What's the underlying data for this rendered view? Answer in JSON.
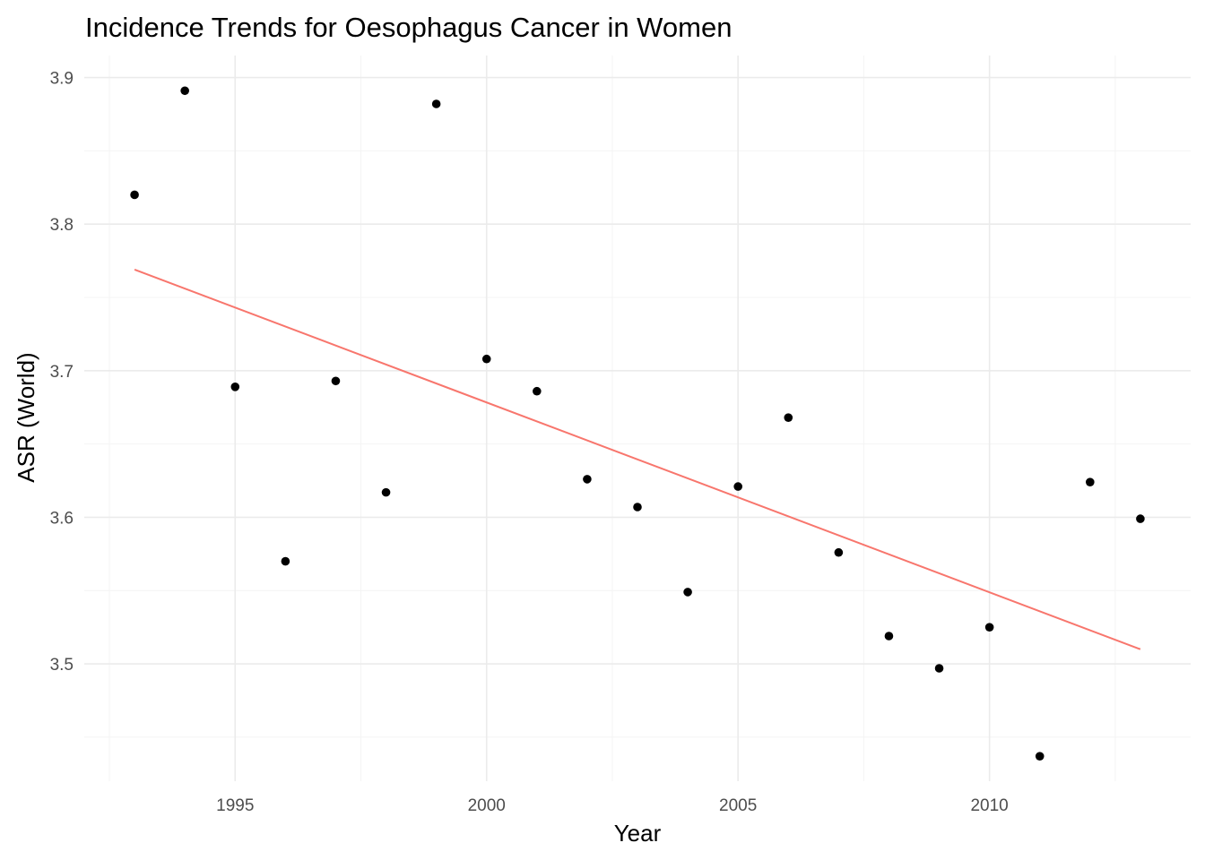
{
  "chart_data": {
    "type": "scatter",
    "title": "Incidence Trends for Oesophagus Cancer in Women",
    "xlabel": "Year",
    "ylabel": "ASR (World)",
    "xlim": [
      1992,
      2014
    ],
    "ylim": [
      3.42,
      3.915
    ],
    "x_ticks": [
      1995,
      2000,
      2005,
      2010
    ],
    "x_tick_labels": [
      "1995",
      "2000",
      "2005",
      "2010"
    ],
    "y_ticks": [
      3.5,
      3.6,
      3.7,
      3.8,
      3.9
    ],
    "y_tick_labels": [
      "3.5",
      "3.6",
      "3.7",
      "3.8",
      "3.9"
    ],
    "grid": true,
    "legend": "none",
    "points": [
      {
        "x": 1993,
        "y": 3.82
      },
      {
        "x": 1994,
        "y": 3.891
      },
      {
        "x": 1995,
        "y": 3.689
      },
      {
        "x": 1996,
        "y": 3.57
      },
      {
        "x": 1997,
        "y": 3.693
      },
      {
        "x": 1998,
        "y": 3.617
      },
      {
        "x": 1999,
        "y": 3.882
      },
      {
        "x": 2000,
        "y": 3.708
      },
      {
        "x": 2001,
        "y": 3.686
      },
      {
        "x": 2002,
        "y": 3.626
      },
      {
        "x": 2003,
        "y": 3.607
      },
      {
        "x": 2004,
        "y": 3.549
      },
      {
        "x": 2005,
        "y": 3.621
      },
      {
        "x": 2006,
        "y": 3.668
      },
      {
        "x": 2007,
        "y": 3.576
      },
      {
        "x": 2008,
        "y": 3.519
      },
      {
        "x": 2009,
        "y": 3.497
      },
      {
        "x": 2010,
        "y": 3.525
      },
      {
        "x": 2011,
        "y": 3.437
      },
      {
        "x": 2012,
        "y": 3.624
      },
      {
        "x": 2013,
        "y": 3.599
      }
    ],
    "trend_line": {
      "x": [
        1993,
        2013
      ],
      "y": [
        3.769,
        3.51
      ]
    },
    "colors": {
      "points": "#000000",
      "trend_line": "#F8766D",
      "grid_major": "#EBEBEB",
      "grid_minor": "#F4F4F4"
    }
  }
}
